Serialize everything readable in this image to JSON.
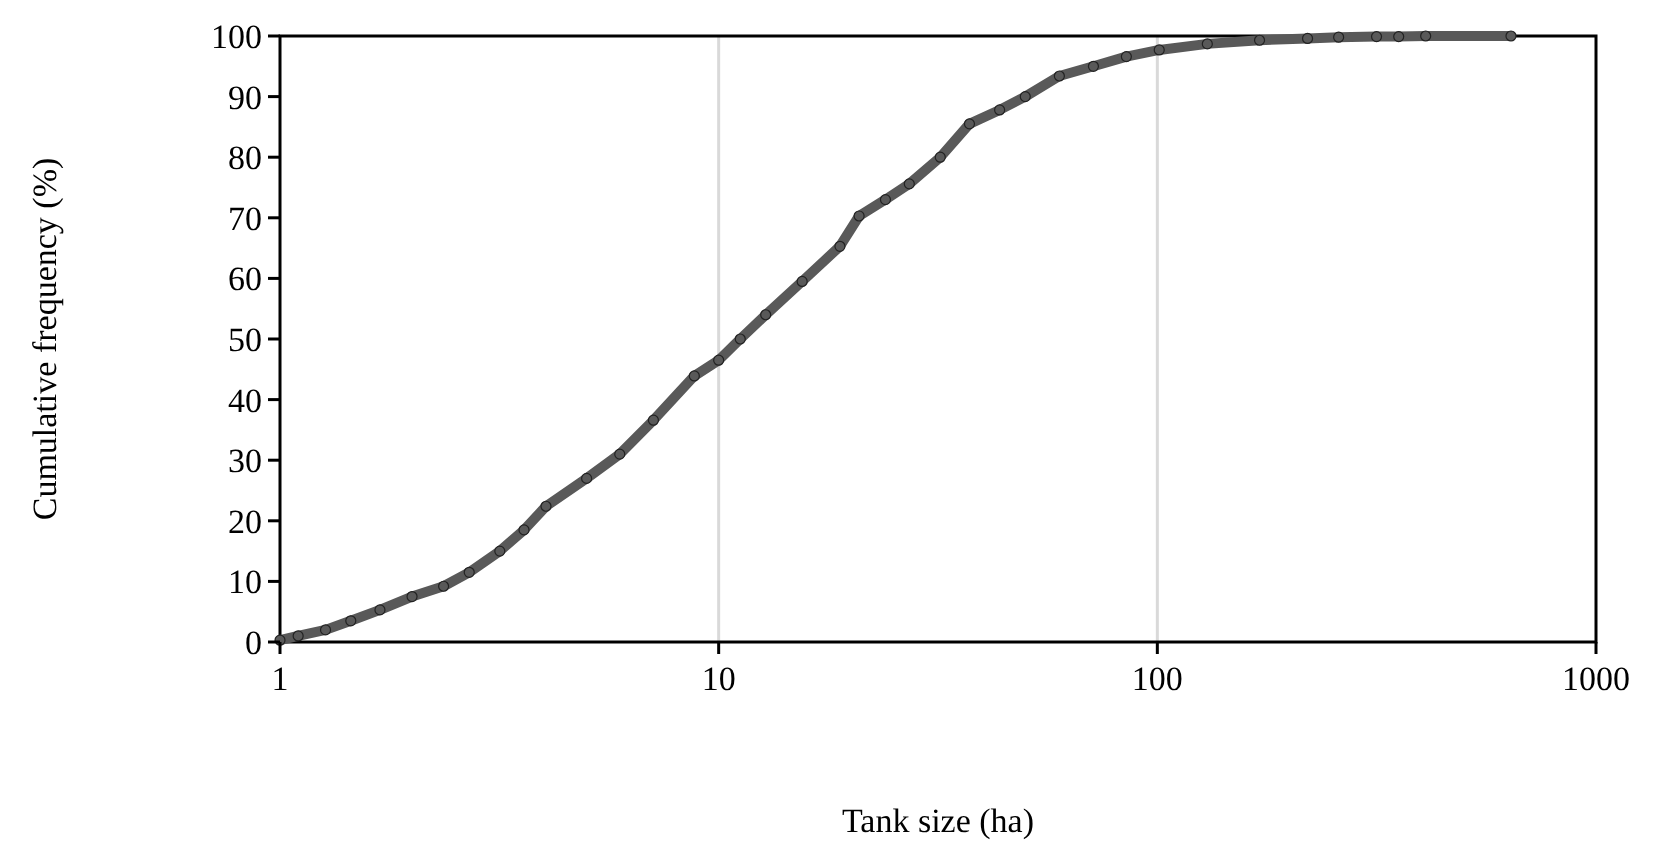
{
  "chart_data": {
    "type": "line",
    "xlabel": "Tank size (ha)",
    "ylabel": "Cumulative frequency (%)",
    "log": "x",
    "xlim": [
      1,
      1000
    ],
    "xticks": [
      1,
      10,
      100,
      1000
    ],
    "ylim": [
      0,
      100
    ],
    "yticks": [
      0,
      10,
      20,
      30,
      40,
      50,
      60,
      70,
      80,
      90,
      100
    ],
    "grid": "x",
    "marker": "circle",
    "line_style": "solid",
    "series": [
      {
        "color": "#595959",
        "x": [
          1,
          1.1,
          1.27,
          1.45,
          1.69,
          2.0,
          2.36,
          2.7,
          3.17,
          3.6,
          4.04,
          5.0,
          5.95,
          7.1,
          8.8,
          10,
          11.2,
          12.8,
          15.5,
          18.9,
          20.9,
          24,
          27.2,
          32,
          37.3,
          43.7,
          50,
          59.8,
          71.5,
          85,
          101,
          130,
          171,
          220,
          259,
          316,
          355,
          409,
          640
        ],
        "values": [
          0.3,
          1,
          2,
          3.5,
          5.3,
          7.5,
          9.2,
          11.5,
          15,
          18.5,
          22.4,
          27,
          31,
          36.6,
          43.9,
          46.5,
          50,
          54,
          59.5,
          65.3,
          70.3,
          73,
          75.6,
          80,
          85.5,
          87.8,
          90,
          93.4,
          95,
          96.6,
          97.7,
          98.7,
          99.3,
          99.6,
          99.8,
          99.9,
          99.9,
          100,
          100
        ]
      }
    ]
  }
}
